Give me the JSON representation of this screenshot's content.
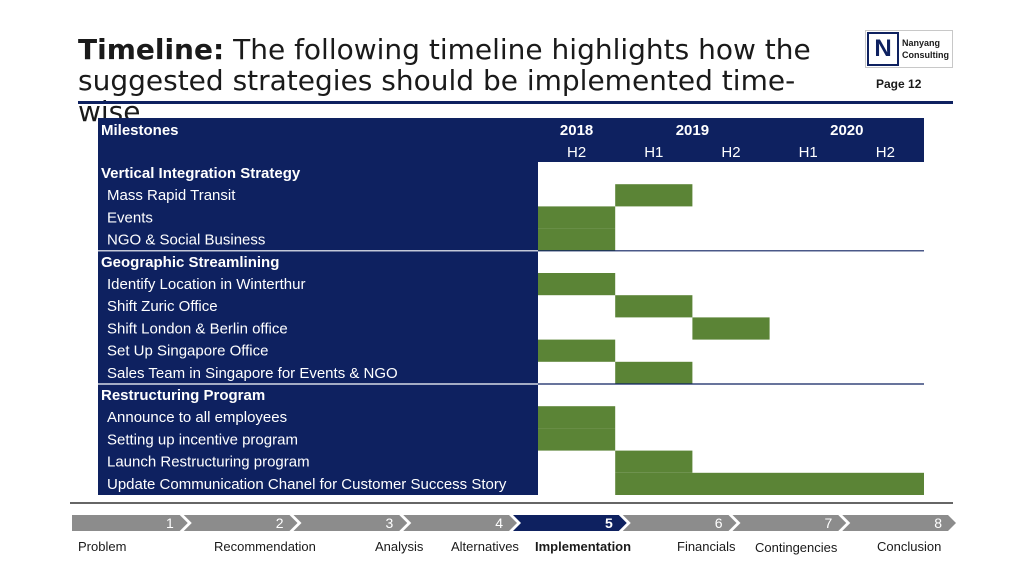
{
  "title": {
    "bold": "Timeline:",
    "rest": "The following timeline highlights how the suggested strategies should be implemented time-wise"
  },
  "logo": {
    "mark": "N",
    "line1": "Nanyang",
    "line2": "Consulting"
  },
  "page_label": "Page 12",
  "colors": {
    "navy": "#0e2160",
    "bar": "#5b8436",
    "step_gray": "#8c8c8c"
  },
  "gantt": {
    "milestones_label": "Milestones",
    "years": [
      "2018",
      "2019",
      "2020"
    ],
    "periods": [
      "H2",
      "H1",
      "H2",
      "H1",
      "H2"
    ],
    "sections": [
      {
        "name": "Vertical Integration Strategy",
        "rows": [
          {
            "label": "Mass Rapid Transit",
            "start": 1,
            "end": 2
          },
          {
            "label": "Events",
            "start": 0,
            "end": 1
          },
          {
            "label": "NGO & Social Business",
            "start": 0,
            "end": 1
          }
        ]
      },
      {
        "name": "Geographic Streamlining",
        "rows": [
          {
            "label": "Identify Location in Winterthur",
            "start": 0,
            "end": 1
          },
          {
            "label": "Shift Zuric Office",
            "start": 1,
            "end": 2
          },
          {
            "label": "Shift London & Berlin office",
            "start": 2,
            "end": 3
          },
          {
            "label": "Set Up Singapore Office",
            "start": 0,
            "end": 1
          },
          {
            "label": "Sales Team in Singapore for Events & NGO",
            "start": 1,
            "end": 2
          }
        ]
      },
      {
        "name": "Restructuring Program",
        "rows": [
          {
            "label": "Announce to all employees",
            "start": 0,
            "end": 1
          },
          {
            "label": "Setting up incentive program",
            "start": 0,
            "end": 1
          },
          {
            "label": "Launch Restructuring program",
            "start": 1,
            "end": 2
          },
          {
            "label": "Update Communication Chanel for Customer Success Story",
            "start": 1,
            "end": 5
          }
        ]
      }
    ]
  },
  "steps": {
    "active_index": 4,
    "items": [
      {
        "number": "1",
        "label": "Problem"
      },
      {
        "number": "2",
        "label": "Recommendation"
      },
      {
        "number": "3",
        "label": "Analysis"
      },
      {
        "number": "4",
        "label": "Alternatives"
      },
      {
        "number": "5",
        "label": "Implementation"
      },
      {
        "number": "6",
        "label": "Financials"
      },
      {
        "number": "7",
        "label": "Contingencies"
      },
      {
        "number": "8",
        "label": "Conclusion"
      }
    ]
  }
}
